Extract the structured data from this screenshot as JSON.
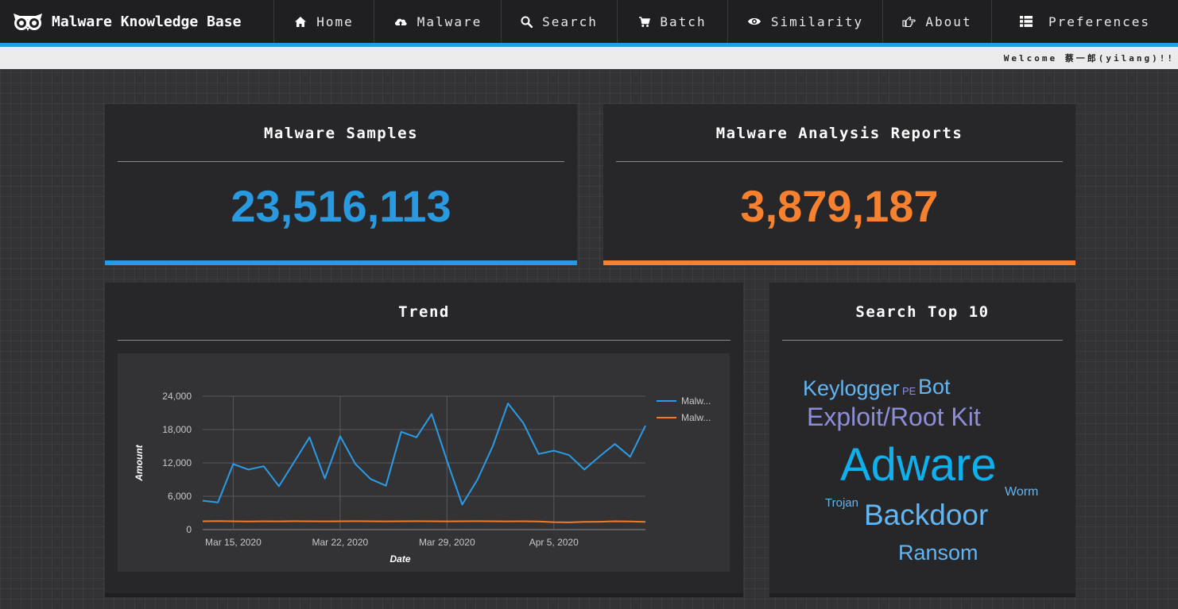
{
  "brand": {
    "title": "Malware Knowledge Base"
  },
  "nav": {
    "items": [
      {
        "label": "Home",
        "icon": "home-icon"
      },
      {
        "label": "Malware",
        "icon": "cloud-upload-icon"
      },
      {
        "label": "Search",
        "icon": "search-icon"
      },
      {
        "label": "Batch",
        "icon": "cart-icon"
      },
      {
        "label": "Similarity",
        "icon": "eye-icon"
      },
      {
        "label": "About",
        "icon": "hand-point-icon"
      },
      {
        "label": "Preferences",
        "icon": "list-icon"
      }
    ]
  },
  "welcome": {
    "text": "Welcome 蔡一郎(yilang)!!"
  },
  "stats": {
    "samples": {
      "title": "Malware Samples",
      "value": "23,516,113",
      "color": "#2a9ae0"
    },
    "reports": {
      "title": "Malware Analysis Reports",
      "value": "3,879,187",
      "color": "#f7812e"
    }
  },
  "trend": {
    "title": "Trend"
  },
  "chart_data": {
    "type": "line",
    "xlabel": "Date",
    "ylabel": "Amount",
    "ylim": [
      0,
      24000
    ],
    "yticks": [
      "0",
      "6,000",
      "12,000",
      "18,000",
      "24,000"
    ],
    "xticks": [
      {
        "label": "Mar 15, 2020",
        "day": 15
      },
      {
        "label": "Mar 22, 2020",
        "day": 22
      },
      {
        "label": "Mar 29, 2020",
        "day": 29
      },
      {
        "label": "Apr 5, 2020",
        "day": 36
      }
    ],
    "grid": true,
    "legend": "right",
    "series": [
      {
        "name": "Malw...",
        "color": "#2b9be5",
        "values": [
          5200,
          4900,
          11800,
          10800,
          11400,
          7800,
          12200,
          16600,
          9200,
          16800,
          11800,
          9100,
          7900,
          17600,
          16600,
          20800,
          12400,
          4500,
          9000,
          15000,
          22700,
          19200,
          13600,
          14200,
          13400,
          10800,
          13200,
          15400,
          13100,
          18700
        ]
      },
      {
        "name": "Malw...",
        "color": "#f07b2a",
        "values": [
          1500,
          1550,
          1500,
          1450,
          1500,
          1480,
          1520,
          1500,
          1480,
          1500,
          1520,
          1500,
          1480,
          1500,
          1520,
          1500,
          1480,
          1500,
          1520,
          1500,
          1480,
          1500,
          1450,
          1350,
          1300,
          1380,
          1420,
          1500,
          1450,
          1400
        ]
      }
    ]
  },
  "search_top": {
    "title": "Search Top 10",
    "words": [
      {
        "text": "Keylogger",
        "color": "#64b5f0"
      },
      {
        "text": "PE",
        "color": "#8d8ed8"
      },
      {
        "text": "Bot",
        "color": "#64b5f0"
      },
      {
        "text": "Exploit/Root Kit",
        "color": "#8d8ed8"
      },
      {
        "text": "Adware",
        "color": "#0fb0ee"
      },
      {
        "text": "Worm",
        "color": "#64b5f0"
      },
      {
        "text": "Trojan",
        "color": "#64b5f0"
      },
      {
        "text": "Backdoor",
        "color": "#64b5f0"
      },
      {
        "text": "Ransom",
        "color": "#64b5f0"
      }
    ]
  }
}
